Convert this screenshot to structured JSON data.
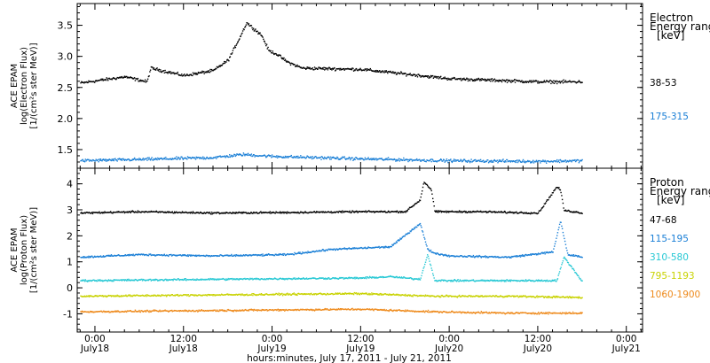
{
  "xlabel": "hours:minutes, July 17, 2011 - July 21, 2011",
  "x_ticks": [
    {
      "time": "0:00",
      "date": "July18",
      "hour": 24
    },
    {
      "time": "12:00",
      "date": "July18",
      "hour": 36
    },
    {
      "time": "0:00",
      "date": "July19",
      "hour": 48
    },
    {
      "time": "12:00",
      "date": "July19",
      "hour": 60
    },
    {
      "time": "0:00",
      "date": "July20",
      "hour": 72
    },
    {
      "time": "12:00",
      "date": "July20",
      "hour": 84
    },
    {
      "time": "0:00",
      "date": "July21",
      "hour": 96
    }
  ],
  "chart_data": [
    {
      "type": "scatter",
      "panel": "electron",
      "ylabel": [
        "ACE EPAM",
        "log(Electron Flux)",
        "[1/(cm²s ster MeV)]"
      ],
      "xlim_hours": [
        21.6,
        98.2
      ],
      "ylim": [
        1.2,
        3.85
      ],
      "yticks": [
        "1.5",
        "2.0",
        "2.5",
        "3.0",
        "3.5"
      ],
      "ytick_values": [
        1.5,
        2.0,
        2.5,
        3.0,
        3.5
      ],
      "legend_title": [
        "Electron",
        "Energy range",
        "[keV]"
      ],
      "series": [
        {
          "name": "38-53",
          "color": "#000000",
          "x_hours": [
            22,
            28,
            31,
            31.5,
            36,
            40,
            42,
            43.5,
            44.5,
            45.5,
            46.5,
            47.5,
            48.5,
            50,
            52,
            60,
            72,
            84,
            90
          ],
          "y": [
            2.58,
            2.68,
            2.6,
            2.82,
            2.7,
            2.78,
            2.95,
            3.3,
            3.55,
            3.45,
            3.35,
            3.1,
            3.05,
            2.92,
            2.82,
            2.8,
            2.65,
            2.6,
            2.6
          ]
        },
        {
          "name": "175-315",
          "color": "#1a7fd6",
          "x_hours": [
            22,
            30,
            40,
            44,
            48,
            60,
            72,
            84,
            90
          ],
          "y": [
            1.33,
            1.35,
            1.38,
            1.43,
            1.4,
            1.36,
            1.33,
            1.32,
            1.33
          ]
        }
      ]
    },
    {
      "type": "scatter",
      "panel": "proton",
      "ylabel": [
        "ACE EPAM",
        "log(Proton Flux)",
        "[1/(cm²s ster MeV)]"
      ],
      "xlim_hours": [
        21.6,
        98.2
      ],
      "ylim": [
        -1.7,
        4.6
      ],
      "yticks": [
        "-1",
        "0",
        "1",
        "2",
        "3",
        "4"
      ],
      "ytick_values": [
        -1,
        0,
        1,
        2,
        3,
        4
      ],
      "legend_title": [
        "Proton",
        "Energy range",
        "[keV]"
      ],
      "series": [
        {
          "name": "47-68",
          "color": "#000000",
          "x_hours": [
            22,
            30,
            40,
            50,
            60,
            66,
            68,
            68.5,
            69.5,
            70,
            76,
            84,
            86.5,
            87,
            87.5,
            90
          ],
          "y": [
            2.9,
            2.95,
            2.9,
            2.92,
            2.95,
            2.95,
            3.4,
            4.1,
            3.8,
            2.95,
            2.95,
            2.9,
            3.9,
            3.8,
            3.0,
            2.9
          ]
        },
        {
          "name": "115-195",
          "color": "#1a7fd6",
          "x_hours": [
            22,
            30,
            40,
            50,
            56,
            64,
            68,
            69,
            70,
            72,
            80,
            86,
            87,
            88,
            90
          ],
          "y": [
            1.2,
            1.3,
            1.25,
            1.3,
            1.5,
            1.6,
            2.5,
            1.5,
            1.35,
            1.25,
            1.2,
            1.4,
            2.6,
            1.3,
            1.2
          ]
        },
        {
          "name": "310-580",
          "color": "#27c8d4",
          "x_hours": [
            22,
            40,
            60,
            64,
            68,
            69,
            70,
            80,
            86.5,
            87.5,
            90
          ],
          "y": [
            0.3,
            0.35,
            0.4,
            0.45,
            0.35,
            1.3,
            0.3,
            0.3,
            0.3,
            1.2,
            0.25
          ]
        },
        {
          "name": "795-1193",
          "color": "#c8d200",
          "x_hours": [
            22,
            40,
            60,
            70,
            80,
            90
          ],
          "y": [
            -0.3,
            -0.25,
            -0.2,
            -0.3,
            -0.3,
            -0.35
          ]
        },
        {
          "name": "1060-1900",
          "color": "#ee8a1c",
          "x_hours": [
            22,
            40,
            60,
            70,
            80,
            90
          ],
          "y": [
            -0.9,
            -0.85,
            -0.8,
            -0.9,
            -0.95,
            -0.95
          ]
        }
      ]
    }
  ]
}
